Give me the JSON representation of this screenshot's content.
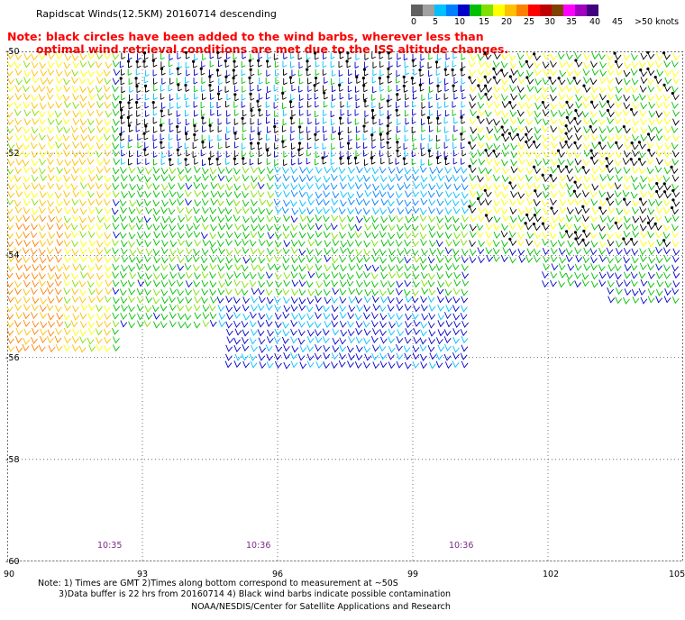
{
  "header": {
    "title": "Rapidscat Winds(12.5KM) 20160714 descending",
    "note_line1": "Note: black circles have been added to the wind barbs, wherever less than",
    "note_line2": "optimal wind retrieval conditions are met due to the ISS altitude changes."
  },
  "legend": {
    "labels": [
      "0",
      "5",
      "10",
      "15",
      "20",
      "25",
      "30",
      "35",
      "40",
      "45",
      ">50 knots"
    ],
    "colors": [
      "#606060",
      "#a0a0a0",
      "#00c0ff",
      "#0080ff",
      "#0000c8",
      "#00c000",
      "#80e000",
      "#ffff00",
      "#ffc000",
      "#ff8000",
      "#ff0000",
      "#c00000",
      "#804000",
      "#ff00ff",
      "#a000c0",
      "#400080"
    ]
  },
  "map": {
    "lat_labels": [
      "-50",
      "-52",
      "-54",
      "-56",
      "-58",
      "-60"
    ],
    "lon_labels": [
      "90",
      "93",
      "96",
      "99",
      "102",
      "105"
    ],
    "lat_values": [
      -50,
      -52,
      -54,
      -56,
      -58,
      -60
    ],
    "lon_values": [
      90,
      93,
      96,
      99,
      102,
      105
    ],
    "lon_range": [
      90,
      105
    ],
    "lat_range": [
      -50,
      -60
    ],
    "time_labels": [
      "10:35",
      "10:36",
      "10:36"
    ],
    "time_lons": [
      92,
      95.3,
      99.8
    ]
  },
  "footer": {
    "note_line1": "Note: 1) Times are GMT 2)Times along bottom correspond to measurement at ~50S",
    "note_line2": "3)Data buffer is 22 hrs from 20160714 4) Black wind barbs indicate possible contamination",
    "credit": "NOAA/NESDIS/Center for Satellite Applications and Research"
  }
}
